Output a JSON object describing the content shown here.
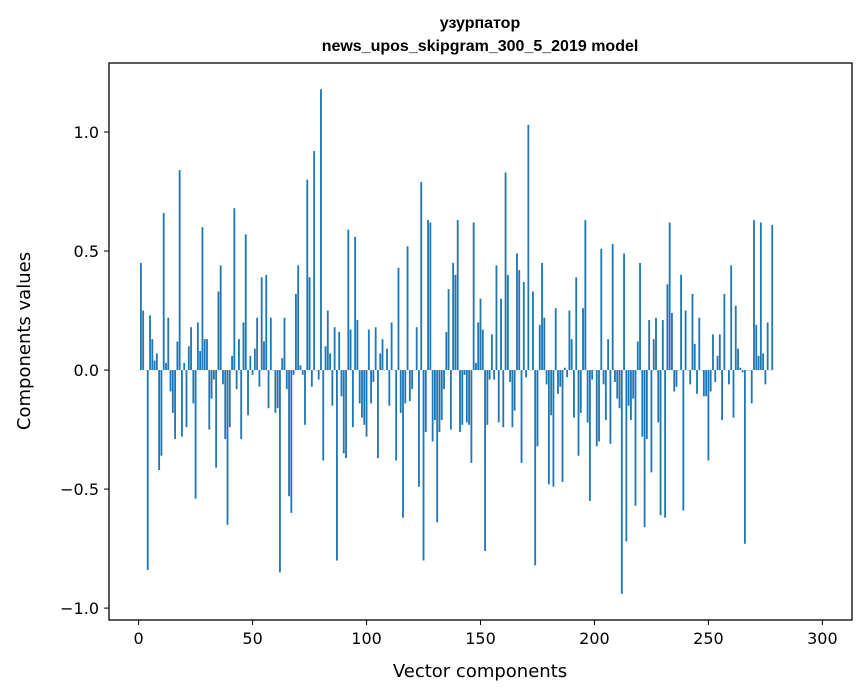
{
  "chart_data": {
    "type": "bar",
    "title_line1": "узурпатор",
    "title_line2": "news_upos_skipgram_300_5_2019 model",
    "xlabel": "Vector components",
    "ylabel": "Components values",
    "xlim": [
      -13,
      313
    ],
    "ylim": [
      -1.05,
      1.29
    ],
    "xticks": [
      0,
      50,
      100,
      150,
      200,
      250,
      300
    ],
    "xtick_labels": [
      "0",
      "50",
      "100",
      "150",
      "200",
      "250",
      "300"
    ],
    "yticks": [
      -1.0,
      -0.5,
      0.0,
      0.5,
      1.0
    ],
    "ytick_labels": [
      "−1.0",
      "−0.5",
      "0.0",
      "0.5",
      "1.0"
    ],
    "bar_color": "#1f77b4",
    "values": [
      0.0,
      0.45,
      0.25,
      0.0,
      -0.84,
      0.23,
      0.13,
      0.04,
      0.07,
      -0.42,
      -0.36,
      0.66,
      0.03,
      0.22,
      -0.09,
      -0.18,
      -0.29,
      0.12,
      0.84,
      -0.28,
      0.03,
      -0.24,
      0.1,
      0.18,
      -0.14,
      -0.54,
      0.2,
      0.08,
      0.6,
      0.13,
      0.13,
      -0.25,
      -0.12,
      -0.04,
      -0.41,
      0.33,
      0.44,
      -0.06,
      -0.29,
      -0.65,
      -0.24,
      0.06,
      0.68,
      -0.08,
      0.13,
      -0.29,
      0.2,
      0.57,
      -0.19,
      0.06,
      -0.02,
      0.09,
      0.22,
      -0.07,
      0.39,
      0.12,
      0.4,
      -0.16,
      0.22,
      0.0,
      -0.18,
      -0.16,
      -0.85,
      0.05,
      0.22,
      -0.08,
      -0.53,
      -0.6,
      -0.02,
      0.32,
      0.44,
      0.02,
      -0.02,
      -0.23,
      0.8,
      0.39,
      -0.07,
      0.92,
      0.0,
      -0.04,
      1.18,
      -0.38,
      0.1,
      0.25,
      0.07,
      -0.15,
      0.18,
      -0.8,
      0.16,
      -0.11,
      -0.35,
      -0.37,
      0.59,
      0.17,
      -0.24,
      0.56,
      0.21,
      -0.14,
      -0.2,
      -0.23,
      -0.28,
      0.17,
      -0.14,
      -0.05,
      0.18,
      -0.37,
      0.07,
      0.13,
      0.0,
      0.09,
      -0.15,
      0.2,
      0.0,
      -0.38,
      0.43,
      -0.18,
      -0.62,
      -0.14,
      0.52,
      -0.13,
      -0.08,
      0.0,
      0.18,
      -0.49,
      0.79,
      -0.8,
      -0.26,
      0.63,
      0.62,
      -0.3,
      -0.21,
      -0.64,
      -0.26,
      -0.21,
      -0.08,
      0.16,
      0.34,
      -0.25,
      0.45,
      0.4,
      0.63,
      -0.26,
      -0.23,
      -0.02,
      -0.22,
      -0.23,
      -0.39,
      0.62,
      0.03,
      0.2,
      0.3,
      0.17,
      -0.76,
      -0.23,
      -0.04,
      0.15,
      -0.04,
      0.44,
      -0.22,
      0.3,
      -0.24,
      0.83,
      0.4,
      -0.05,
      -0.24,
      -0.17,
      0.49,
      0.42,
      -0.39,
      0.37,
      -0.03,
      1.03,
      0.0,
      0.33,
      -0.82,
      -0.32,
      0.19,
      0.45,
      0.22,
      -0.06,
      -0.48,
      -0.19,
      -0.49,
      0.26,
      -0.1,
      -0.07,
      -0.47,
      0.01,
      -0.03,
      0.25,
      0.13,
      -0.2,
      0.39,
      -0.36,
      -0.18,
      0.26,
      0.63,
      -0.22,
      -0.55,
      -0.04,
      0.0,
      -0.32,
      -0.3,
      0.51,
      -0.06,
      -0.21,
      0.13,
      -0.31,
      0.53,
      -0.05,
      -0.12,
      -0.16,
      -0.94,
      0.49,
      -0.72,
      -0.15,
      -0.21,
      -0.12,
      -0.57,
      0.12,
      0.45,
      -0.28,
      -0.66,
      -0.29,
      0.21,
      -0.43,
      0.13,
      0.22,
      -0.22,
      -0.61,
      0.21,
      -0.62,
      0.36,
      0.62,
      0.24,
      -0.09,
      -0.07,
      0.0,
      0.4,
      -0.59,
      0.25,
      0.0,
      -0.06,
      0.32,
      0.11,
      -0.1,
      0.22,
      0.0,
      -0.11,
      -0.11,
      -0.38,
      -0.09,
      0.15,
      -0.05,
      0.06,
      0.15,
      -0.21,
      0.32,
      0.0,
      -0.06,
      0.44,
      -0.2,
      0.27,
      0.09,
      0.01,
      -0.01,
      -0.73,
      0.0,
      0.0,
      -0.14,
      0.63,
      0.19,
      0.06,
      0.62,
      0.07,
      -0.06,
      0.2,
      0.0,
      0.61
    ]
  }
}
